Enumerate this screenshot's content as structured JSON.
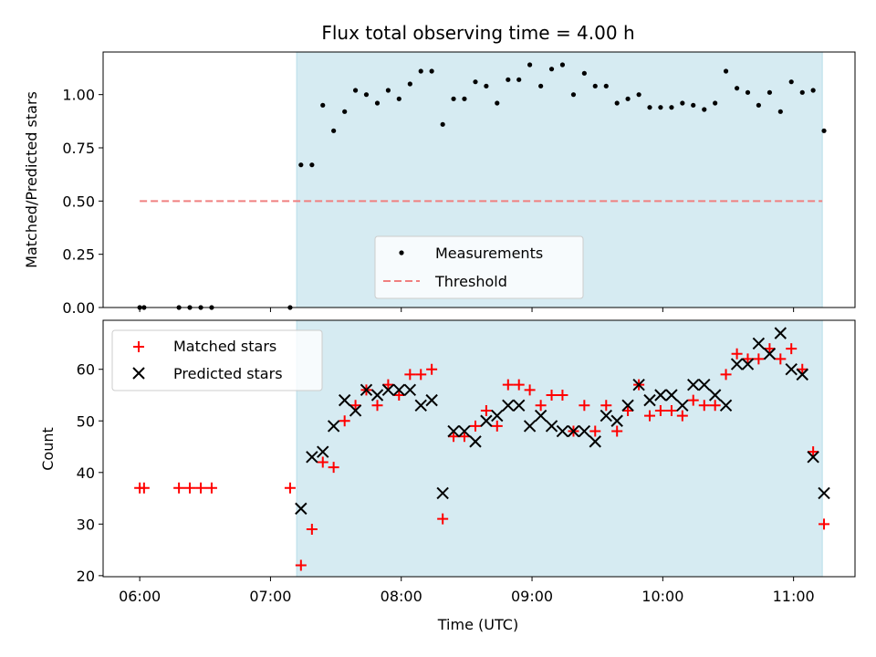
{
  "chart_data": [
    {
      "type": "scatter",
      "title": "Flux total observing time = 4.00 h",
      "xlabel": "",
      "ylabel": "Matched/Predicted stars",
      "xlim": [
        5.72,
        11.47
      ],
      "ylim": [
        0.0,
        1.2
      ],
      "yticks": [
        0.0,
        0.25,
        0.5,
        0.75,
        1.0
      ],
      "ytick_labels": [
        "0.00",
        "0.25",
        "0.50",
        "0.75",
        "1.00"
      ],
      "shaded_span": [
        7.2,
        11.22
      ],
      "legend_position": "lower-center",
      "series": [
        {
          "name": "Measurements",
          "marker": "dot",
          "color": "#000000",
          "x": [
            6.0,
            6.033,
            6.3,
            6.383,
            6.467,
            6.55,
            7.15,
            7.233,
            7.317,
            7.4,
            7.483,
            7.567,
            7.65,
            7.733,
            7.817,
            7.9,
            7.983,
            8.067,
            8.15,
            8.233,
            8.317,
            8.4,
            8.483,
            8.567,
            8.65,
            8.733,
            8.817,
            8.9,
            8.983,
            9.067,
            9.15,
            9.233,
            9.317,
            9.4,
            9.483,
            9.567,
            9.65,
            9.733,
            9.817,
            9.9,
            9.983,
            10.067,
            10.15,
            10.233,
            10.317,
            10.4,
            10.483,
            10.567,
            10.65,
            10.733,
            10.817,
            10.9,
            10.983,
            11.067,
            11.15,
            11.233
          ],
          "y": [
            0.0,
            0.0,
            0.0,
            0.0,
            0.0,
            0.0,
            0.0,
            0.67,
            0.67,
            0.95,
            0.83,
            0.92,
            1.02,
            1.0,
            0.96,
            1.02,
            0.98,
            1.05,
            1.11,
            1.11,
            0.86,
            0.98,
            0.98,
            1.06,
            1.04,
            0.96,
            1.07,
            1.07,
            1.14,
            1.04,
            1.12,
            1.14,
            1.0,
            1.1,
            1.04,
            1.04,
            0.96,
            0.98,
            1.0,
            0.94,
            0.94,
            0.94,
            0.96,
            0.95,
            0.93,
            0.96,
            1.11,
            1.03,
            1.01,
            0.95,
            1.01,
            0.92,
            1.06,
            1.01,
            1.02,
            0.83
          ]
        },
        {
          "name": "Threshold",
          "marker": "dashed-line",
          "color": "#f08080",
          "x": [
            6.0,
            11.22
          ],
          "y": [
            0.5,
            0.5
          ]
        }
      ]
    },
    {
      "type": "scatter",
      "title": "",
      "xlabel": "Time (UTC)",
      "ylabel": "Count",
      "xlim": [
        5.72,
        11.47
      ],
      "ylim": [
        19.8,
        69.5
      ],
      "yticks": [
        20,
        30,
        40,
        50,
        60
      ],
      "ytick_labels": [
        "20",
        "30",
        "40",
        "50",
        "60"
      ],
      "xticks": [
        6,
        7,
        8,
        9,
        10,
        11
      ],
      "xtick_labels": [
        "06:00",
        "07:00",
        "08:00",
        "09:00",
        "10:00",
        "11:00"
      ],
      "shaded_span": [
        7.2,
        11.22
      ],
      "legend_position": "upper-left",
      "series": [
        {
          "name": "Matched stars",
          "marker": "plus",
          "color": "#ff0000",
          "x": [
            6.0,
            6.033,
            6.3,
            6.383,
            6.467,
            6.55,
            7.15,
            7.233,
            7.317,
            7.4,
            7.483,
            7.567,
            7.65,
            7.733,
            7.817,
            7.9,
            7.983,
            8.067,
            8.15,
            8.233,
            8.317,
            8.4,
            8.483,
            8.567,
            8.65,
            8.733,
            8.817,
            8.9,
            8.983,
            9.067,
            9.15,
            9.233,
            9.317,
            9.4,
            9.483,
            9.567,
            9.65,
            9.733,
            9.817,
            9.9,
            9.983,
            10.067,
            10.15,
            10.233,
            10.317,
            10.4,
            10.483,
            10.567,
            10.65,
            10.733,
            10.817,
            10.9,
            10.983,
            11.067,
            11.15,
            11.233
          ],
          "y": [
            37,
            37,
            37,
            37,
            37,
            37,
            37,
            22,
            29,
            42,
            41,
            50,
            53,
            56,
            53,
            57,
            55,
            59,
            59,
            60,
            31,
            47,
            47,
            49,
            52,
            49,
            57,
            57,
            56,
            53,
            55,
            55,
            48,
            53,
            48,
            53,
            48,
            52,
            57,
            51,
            52,
            52,
            51,
            54,
            53,
            53,
            59,
            63,
            62,
            62,
            64,
            62,
            64,
            60,
            44,
            30
          ]
        },
        {
          "name": "Predicted stars",
          "marker": "x",
          "color": "#000000",
          "x": [
            7.233,
            7.317,
            7.4,
            7.483,
            7.567,
            7.65,
            7.733,
            7.817,
            7.9,
            7.983,
            8.067,
            8.15,
            8.233,
            8.317,
            8.4,
            8.483,
            8.567,
            8.65,
            8.733,
            8.817,
            8.9,
            8.983,
            9.067,
            9.15,
            9.233,
            9.317,
            9.4,
            9.483,
            9.567,
            9.65,
            9.733,
            9.817,
            9.9,
            9.983,
            10.067,
            10.15,
            10.233,
            10.317,
            10.4,
            10.483,
            10.567,
            10.65,
            10.733,
            10.817,
            10.9,
            10.983,
            11.067,
            11.15,
            11.233
          ],
          "y": [
            33,
            43,
            44,
            49,
            54,
            52,
            56,
            55,
            56,
            56,
            56,
            53,
            54,
            36,
            48,
            48,
            46,
            50,
            51,
            53,
            53,
            49,
            51,
            49,
            48,
            48,
            48,
            46,
            51,
            50,
            53,
            57,
            54,
            55,
            55,
            53,
            57,
            57,
            55,
            53,
            61,
            61,
            65,
            63,
            67,
            60,
            59,
            43,
            36
          ]
        }
      ]
    }
  ]
}
